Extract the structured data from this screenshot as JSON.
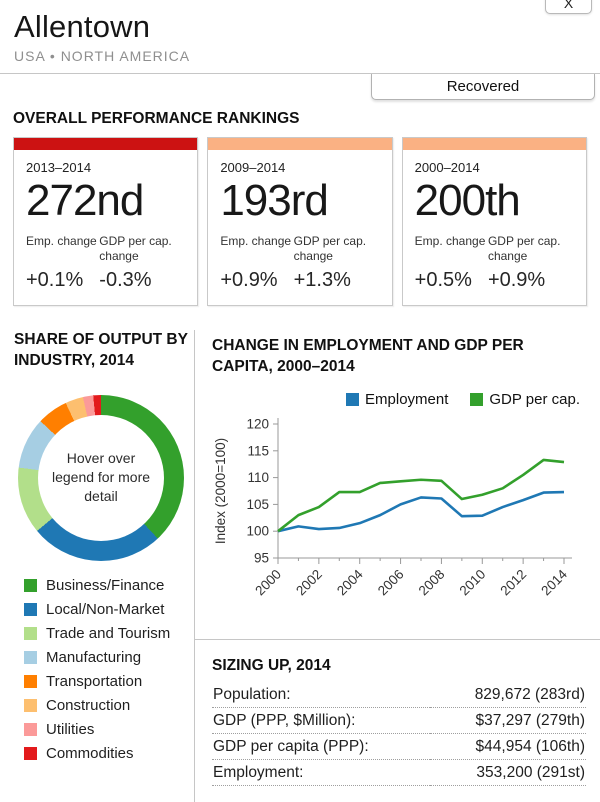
{
  "window": {
    "close_label": "X"
  },
  "header": {
    "title": "Allentown",
    "subtitle": "USA • NORTH AMERICA",
    "status_badge": "Recovered"
  },
  "rankings": {
    "heading": "OVERALL PERFORMANCE RANKINGS",
    "emp_label": "Emp. change",
    "gdp_label": "GDP per cap. change",
    "cards": [
      {
        "period": "2013–2014",
        "rank": "272nd",
        "bar_color": "#cc1212",
        "emp_value": "+0.1%",
        "gdp_value": "-0.3%"
      },
      {
        "period": "2009–2014",
        "rank": "193rd",
        "bar_color": "#fab183",
        "emp_value": "+0.9%",
        "gdp_value": "+1.3%"
      },
      {
        "period": "2000–2014",
        "rank": "200th",
        "bar_color": "#fab183",
        "emp_value": "+0.5%",
        "gdp_value": "+0.9%"
      }
    ]
  },
  "chart_data": [
    {
      "type": "pie",
      "donut": true,
      "title": "SHARE OF OUTPUT BY INDUSTRY, 2014",
      "center_text": "Hover over legend for more detail",
      "labels": [
        "Business/Finance",
        "Local/Non-Market",
        "Trade and Tourism",
        "Manufacturing",
        "Transportation",
        "Construction",
        "Utilities",
        "Commodities"
      ],
      "values": [
        38,
        26,
        13,
        10,
        6,
        3.5,
        2,
        1.5
      ],
      "colors": [
        "#33a02c",
        "#1f78b4",
        "#b2df8a",
        "#a6cee3",
        "#ff7f00",
        "#fdbf6f",
        "#fb9a99",
        "#e31a1c"
      ],
      "legend_position": "bottom",
      "start_angle_deg": 0
    },
    {
      "type": "line",
      "title": "CHANGE IN EMPLOYMENT AND GDP PER CAPITA, 2000–2014",
      "ylabel": "Index (2000=100)",
      "ylim": [
        95,
        120
      ],
      "yticks": [
        95,
        100,
        105,
        110,
        115,
        120
      ],
      "x": [
        2000,
        2001,
        2002,
        2003,
        2004,
        2005,
        2006,
        2007,
        2008,
        2009,
        2010,
        2011,
        2012,
        2013,
        2014
      ],
      "xticks": [
        2000,
        2002,
        2004,
        2006,
        2008,
        2010,
        2012,
        2014
      ],
      "legend_position": "top",
      "grid": false,
      "series": [
        {
          "name": "Employment",
          "color": "#1f78b4",
          "values": [
            100,
            100.9,
            100.4,
            100.6,
            101.5,
            103.0,
            105.0,
            106.3,
            106.1,
            102.8,
            102.9,
            104.5,
            105.8,
            107.2,
            107.3
          ]
        },
        {
          "name": "GDP per cap.",
          "color": "#33a02c",
          "values": [
            100,
            103.0,
            104.5,
            107.3,
            107.3,
            109.0,
            109.3,
            109.6,
            109.4,
            106.0,
            106.8,
            108.0,
            110.5,
            113.3,
            112.9
          ]
        }
      ]
    }
  ],
  "sizing": {
    "heading": "SIZING UP, 2014",
    "rows": [
      {
        "label": "Population:",
        "value": "829,672 (283rd)"
      },
      {
        "label": "GDP (PPP, $Million):",
        "value": "$37,297 (279th)"
      },
      {
        "label": "GDP per capita (PPP):",
        "value": "$44,954 (106th)"
      },
      {
        "label": "Employment:",
        "value": "353,200 (291st)"
      }
    ]
  }
}
